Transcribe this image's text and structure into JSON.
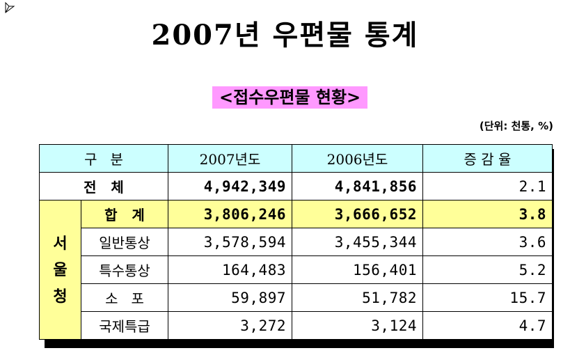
{
  "title": "2007년 우편물 통계",
  "subtitle": "<접수우편물 현황>",
  "unit": "(단위: 천통, %)",
  "table": {
    "headers": [
      "구   분",
      "2007년도",
      "2006년도",
      "증 감 율"
    ],
    "total": {
      "label": "전   체",
      "y2007": "4,942,349",
      "y2006": "4,841,856",
      "rate": "2.1"
    },
    "group": {
      "label": "서\n울\n청",
      "rows": [
        {
          "label": "합   계",
          "y2007": "3,806,246",
          "y2006": "3,666,652",
          "rate": "3.8"
        },
        {
          "label": "일반통상",
          "y2007": "3,578,594",
          "y2006": "3,455,344",
          "rate": "3.6"
        },
        {
          "label": "특수통상",
          "y2007": "164,483",
          "y2006": "156,401",
          "rate": "5.2"
        },
        {
          "label": "소   포",
          "y2007": "59,897",
          "y2006": "51,782",
          "rate": "15.7"
        },
        {
          "label": "국제특급",
          "y2007": "3,272",
          "y2006": "3,124",
          "rate": "4.7"
        }
      ]
    }
  },
  "colors": {
    "header_bg": "#ccffff",
    "highlight_bg": "#ffff99",
    "subtitle_bg": "#ff99ff"
  }
}
